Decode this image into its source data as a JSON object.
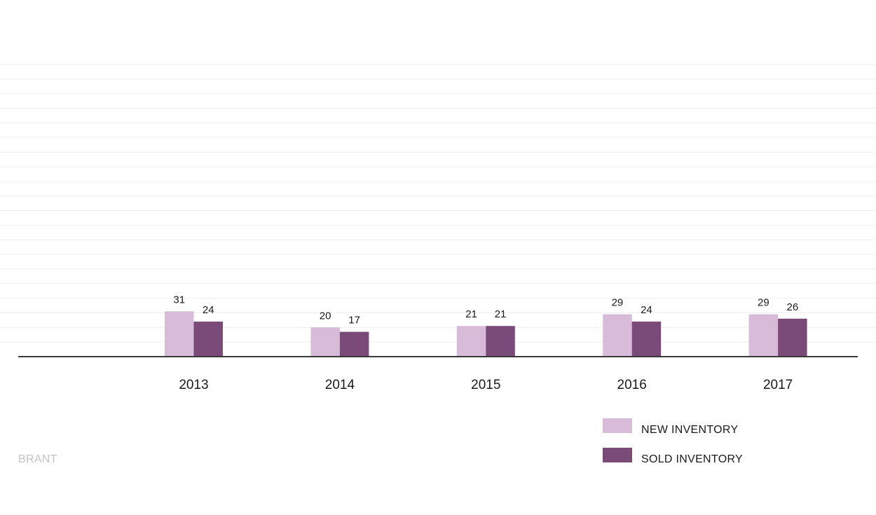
{
  "region_label": "BRANT",
  "colors": {
    "new_inventory": "#d7bbd8",
    "sold_inventory": "#7a4a78",
    "axis": "#3a3a3a",
    "grid": "#eeeeee"
  },
  "chart_data": {
    "type": "bar",
    "categories": [
      "2013",
      "2014",
      "2015",
      "2016",
      "2017"
    ],
    "series": [
      {
        "name": "NEW INVENTORY",
        "values": [
          31,
          20,
          21,
          29,
          29
        ]
      },
      {
        "name": "SOLD INVENTORY",
        "values": [
          24,
          17,
          21,
          24,
          26
        ]
      }
    ],
    "ylim": [
      0,
      200
    ],
    "grid": true,
    "legend_position": "bottom-right"
  }
}
